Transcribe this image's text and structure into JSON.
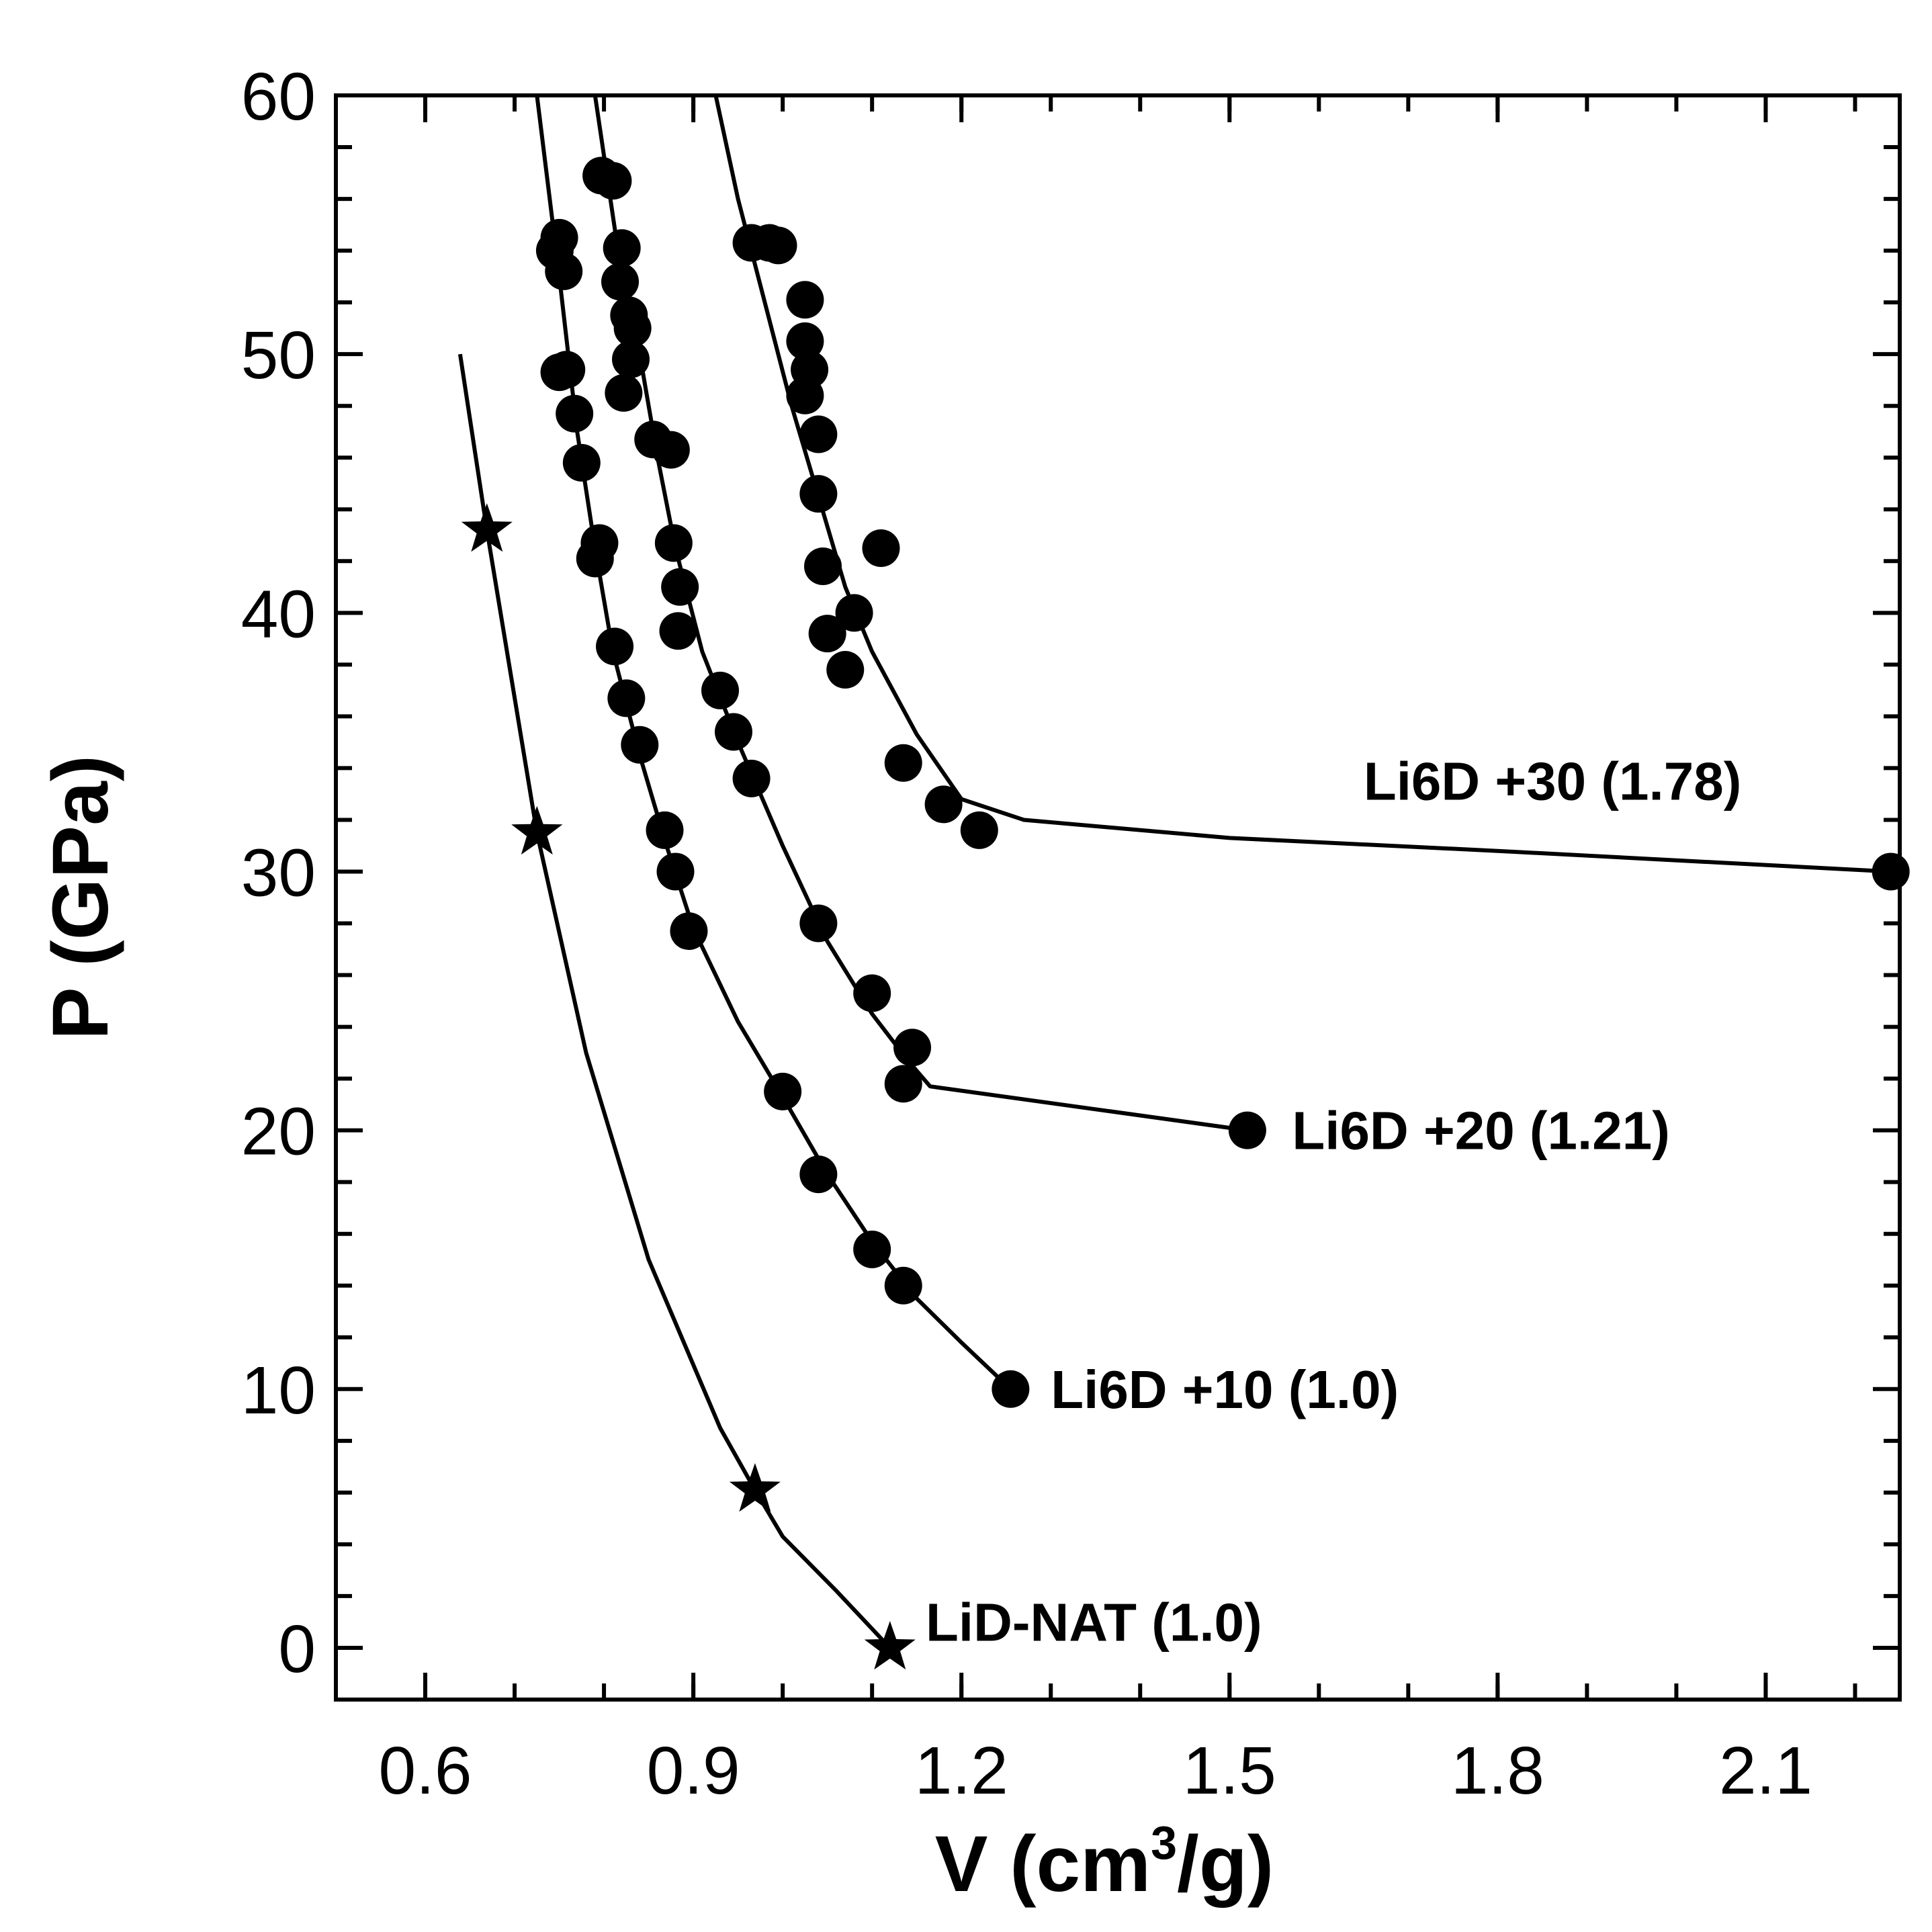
{
  "chart_data": {
    "type": "scatter",
    "xlabel": "V (cm",
    "xlabel_sup": "3",
    "xlabel_end": "/g)",
    "ylabel": "P (GPa)",
    "xlim": [
      0.5,
      2.25
    ],
    "ylim": [
      -2,
      60
    ],
    "x_ticks": [
      "0.6",
      "0.9",
      "1.2",
      "1.5",
      "1.8",
      "2.1"
    ],
    "x_tick_values": [
      0.6,
      0.9,
      1.2,
      1.5,
      1.8,
      2.1
    ],
    "y_ticks": [
      "0",
      "10",
      "20",
      "30",
      "40",
      "50",
      "60"
    ],
    "y_tick_values": [
      0,
      10,
      20,
      30,
      40,
      50,
      60
    ],
    "series": [
      {
        "name": "LiD-NAT (1.0)",
        "marker": "star",
        "points": [
          [
            0.669,
            43.2
          ],
          [
            0.725,
            31.5
          ],
          [
            0.969,
            6.1
          ],
          [
            1.12,
            0.0
          ]
        ],
        "curve": [
          [
            0.639,
            50
          ],
          [
            0.669,
            43.2
          ],
          [
            0.725,
            31.5
          ],
          [
            0.78,
            23
          ],
          [
            0.85,
            15
          ],
          [
            0.93,
            8.5
          ],
          [
            0.969,
            6.1
          ],
          [
            1.0,
            4.3
          ],
          [
            1.06,
            2.2
          ],
          [
            1.12,
            0.0
          ]
        ]
      },
      {
        "name": "Li6D +10 (1.0)",
        "marker": "circle",
        "points": [
          [
            0.745,
            54.0
          ],
          [
            0.75,
            54.5
          ],
          [
            0.755,
            53.2
          ],
          [
            0.75,
            49.3
          ],
          [
            0.758,
            49.4
          ],
          [
            0.767,
            47.7
          ],
          [
            0.775,
            45.8
          ],
          [
            0.795,
            42.7
          ],
          [
            0.79,
            42.1
          ],
          [
            0.812,
            38.7
          ],
          [
            0.825,
            36.7
          ],
          [
            0.84,
            34.9
          ],
          [
            0.868,
            31.6
          ],
          [
            0.88,
            30.0
          ],
          [
            0.895,
            27.7
          ],
          [
            1.0,
            21.5
          ],
          [
            1.04,
            18.3
          ],
          [
            1.1,
            15.4
          ],
          [
            1.135,
            14.0
          ],
          [
            1.255,
            10.0
          ]
        ],
        "curve": [
          [
            0.725,
            60
          ],
          [
            0.75,
            53
          ],
          [
            0.77,
            47
          ],
          [
            0.79,
            42.5
          ],
          [
            0.81,
            38.5
          ],
          [
            0.84,
            34.5
          ],
          [
            0.87,
            31
          ],
          [
            0.9,
            27.8
          ],
          [
            0.95,
            24.2
          ],
          [
            1.0,
            21.3
          ],
          [
            1.05,
            18.3
          ],
          [
            1.1,
            15.7
          ],
          [
            1.15,
            13.5
          ],
          [
            1.2,
            11.8
          ],
          [
            1.255,
            10.0
          ]
        ]
      },
      {
        "name": "Li6D +20 (1.21)",
        "marker": "circle",
        "points": [
          [
            0.797,
            56.9
          ],
          [
            0.81,
            56.7
          ],
          [
            0.82,
            54.1
          ],
          [
            0.818,
            52.8
          ],
          [
            0.828,
            51.5
          ],
          [
            0.832,
            51.0
          ],
          [
            0.83,
            49.8
          ],
          [
            0.822,
            48.5
          ],
          [
            0.855,
            46.7
          ],
          [
            0.875,
            46.3
          ],
          [
            0.878,
            42.7
          ],
          [
            0.885,
            41.0
          ],
          [
            0.883,
            39.3
          ],
          [
            0.93,
            37.0
          ],
          [
            0.945,
            35.4
          ],
          [
            0.965,
            33.6
          ],
          [
            1.04,
            28.0
          ],
          [
            1.1,
            25.3
          ],
          [
            1.145,
            23.2
          ],
          [
            1.135,
            21.8
          ],
          [
            1.52,
            20.0
          ]
        ],
        "curve": [
          [
            0.79,
            60
          ],
          [
            0.82,
            53
          ],
          [
            0.84,
            50
          ],
          [
            0.86,
            46
          ],
          [
            0.88,
            42.5
          ],
          [
            0.91,
            38.5
          ],
          [
            0.95,
            35
          ],
          [
            1.0,
            31
          ],
          [
            1.05,
            27.3
          ],
          [
            1.1,
            24.5
          ],
          [
            1.14,
            22.7
          ],
          [
            1.165,
            21.7
          ],
          [
            1.52,
            20.0
          ]
        ]
      },
      {
        "name": "Li6D +30 (1.78)",
        "marker": "circle",
        "points": [
          [
            0.965,
            54.3
          ],
          [
            0.985,
            54.3
          ],
          [
            0.995,
            54.2
          ],
          [
            1.025,
            52.1
          ],
          [
            1.025,
            50.5
          ],
          [
            1.03,
            49.4
          ],
          [
            1.025,
            48.4
          ],
          [
            1.04,
            46.9
          ],
          [
            1.04,
            44.6
          ],
          [
            1.045,
            41.8
          ],
          [
            1.05,
            39.2
          ],
          [
            1.08,
            40.0
          ],
          [
            1.07,
            37.8
          ],
          [
            1.11,
            42.5
          ],
          [
            1.135,
            34.2
          ],
          [
            1.18,
            32.6
          ],
          [
            1.22,
            31.6
          ],
          [
            2.24,
            30.0
          ]
        ],
        "curve": [
          [
            0.925,
            60
          ],
          [
            0.95,
            56
          ],
          [
            0.98,
            52
          ],
          [
            1.01,
            48
          ],
          [
            1.04,
            44.5
          ],
          [
            1.07,
            41
          ],
          [
            1.1,
            38.5
          ],
          [
            1.15,
            35.3
          ],
          [
            1.2,
            32.8
          ],
          [
            1.27,
            32.0
          ],
          [
            1.5,
            31.3
          ],
          [
            1.8,
            30.8
          ],
          [
            2.24,
            30.0
          ]
        ]
      }
    ],
    "labels": [
      {
        "text": "Li6D +30 (1.78)",
        "x": 1.65,
        "y": 33.5
      },
      {
        "text": "Li6D +20 (1.21)",
        "x": 1.57,
        "y": 20.0
      },
      {
        "text": "Li6D +10 (1.0)",
        "x": 1.3,
        "y": 10.0
      },
      {
        "text": "LiD-NAT (1.0)",
        "x": 1.16,
        "y": 1.0
      }
    ]
  }
}
